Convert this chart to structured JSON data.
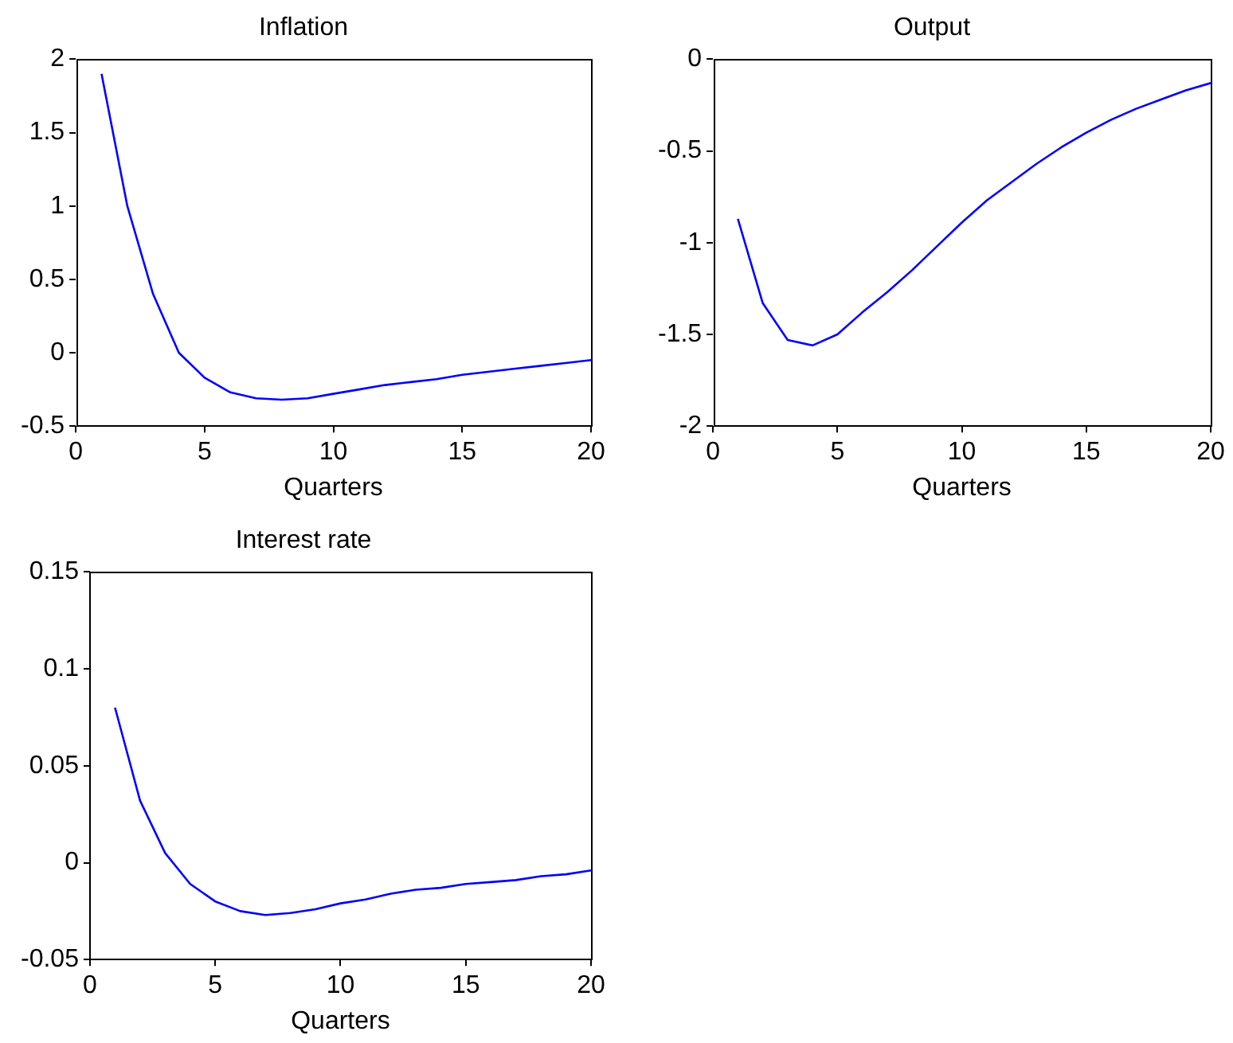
{
  "chart_data": [
    {
      "type": "line",
      "title": "Inflation",
      "xlabel": "Quarters",
      "x": [
        1,
        2,
        3,
        4,
        5,
        6,
        7,
        8,
        9,
        10,
        11,
        12,
        13,
        14,
        15,
        16,
        17,
        18,
        19,
        20
      ],
      "marker": "none",
      "series": [
        {
          "color": "#0000ff",
          "values": [
            1.9,
            1.0,
            0.4,
            0.0,
            -0.17,
            -0.27,
            -0.31,
            -0.32,
            -0.31,
            -0.28,
            -0.25,
            -0.22,
            -0.2,
            -0.18,
            -0.15,
            -0.13,
            -0.11,
            -0.09,
            -0.07,
            -0.05
          ]
        }
      ],
      "xlim": [
        0,
        20
      ],
      "xticks": [
        0,
        5,
        10,
        15,
        20
      ],
      "ylim": [
        -0.5,
        2
      ],
      "yticks": [
        -0.5,
        0,
        0.5,
        1,
        1.5,
        2
      ]
    },
    {
      "type": "line",
      "title": "Output",
      "xlabel": "Quarters",
      "x": [
        1,
        2,
        3,
        4,
        5,
        6,
        7,
        8,
        9,
        10,
        11,
        12,
        13,
        14,
        15,
        16,
        17,
        18,
        19,
        20
      ],
      "marker": "none",
      "series": [
        {
          "color": "#0000ff",
          "values": [
            -0.87,
            -1.33,
            -1.53,
            -1.56,
            -1.5,
            -1.38,
            -1.27,
            -1.15,
            -1.02,
            -0.89,
            -0.77,
            -0.67,
            -0.57,
            -0.48,
            -0.4,
            -0.33,
            -0.27,
            -0.22,
            -0.17,
            -0.13
          ]
        }
      ],
      "xlim": [
        0,
        20
      ],
      "xticks": [
        0,
        5,
        10,
        15,
        20
      ],
      "ylim": [
        -2,
        0
      ],
      "yticks": [
        -2,
        -1.5,
        -1,
        -0.5,
        0
      ]
    },
    {
      "type": "line",
      "title": "Interest rate",
      "xlabel": "Quarters",
      "x": [
        1,
        2,
        3,
        4,
        5,
        6,
        7,
        8,
        9,
        10,
        11,
        12,
        13,
        14,
        15,
        16,
        17,
        18,
        19,
        20
      ],
      "marker": "none",
      "series": [
        {
          "color": "#0000ff",
          "values": [
            0.08,
            0.032,
            0.005,
            -0.011,
            -0.02,
            -0.025,
            -0.027,
            -0.026,
            -0.024,
            -0.021,
            -0.019,
            -0.016,
            -0.014,
            -0.013,
            -0.011,
            -0.01,
            -0.009,
            -0.007,
            -0.006,
            -0.004
          ]
        }
      ],
      "xlim": [
        0,
        20
      ],
      "xticks": [
        0,
        5,
        10,
        15,
        20
      ],
      "ylim": [
        -0.05,
        0.15
      ],
      "yticks": [
        -0.05,
        0,
        0.05,
        0.1,
        0.15
      ]
    }
  ]
}
